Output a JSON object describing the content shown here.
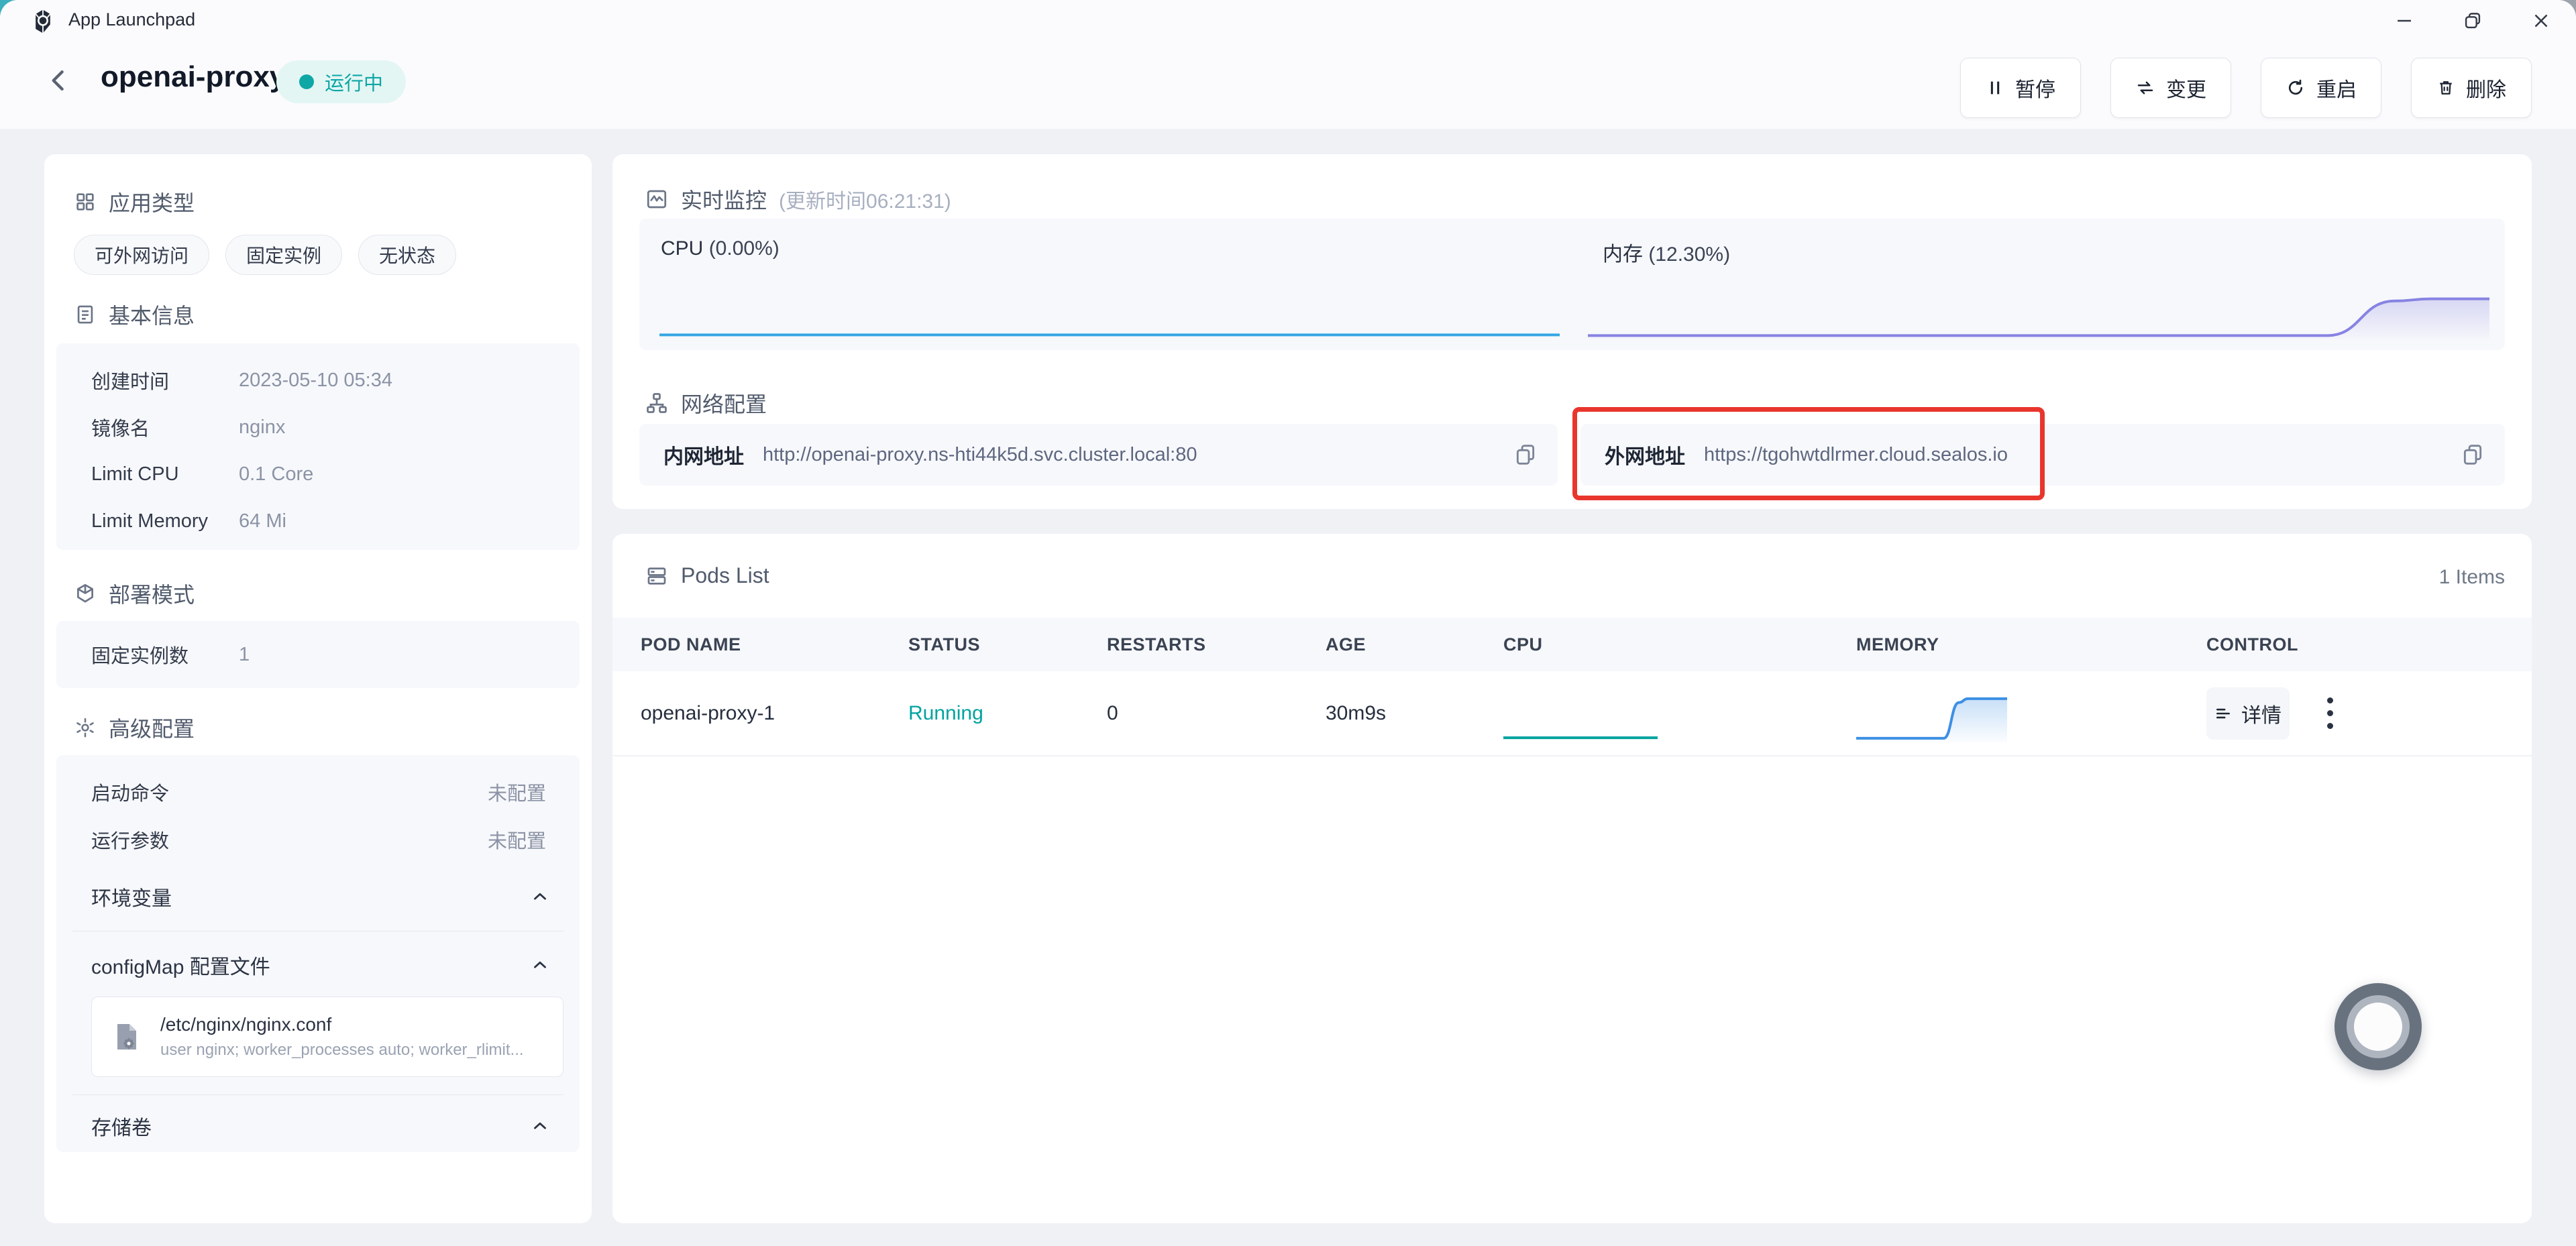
{
  "window": {
    "title": "App Launchpad"
  },
  "header": {
    "app_name": "openai-proxy",
    "status": "运行中",
    "actions": {
      "pause": "暂停",
      "change": "变更",
      "restart": "重启",
      "delete": "删除"
    }
  },
  "sidebar": {
    "app_type": {
      "title": "应用类型",
      "tags": [
        "可外网访问",
        "固定实例",
        "无状态"
      ]
    },
    "basic_info": {
      "title": "基本信息",
      "rows": [
        {
          "label": "创建时间",
          "value": "2023-05-10 05:34"
        },
        {
          "label": "镜像名",
          "value": "nginx"
        },
        {
          "label": "Limit CPU",
          "value": "0.1 Core"
        },
        {
          "label": "Limit Memory",
          "value": "64 Mi"
        }
      ]
    },
    "deploy_mode": {
      "title": "部署模式",
      "rows": [
        {
          "label": "固定实例数",
          "value": "1"
        }
      ]
    },
    "advanced": {
      "title": "高级配置",
      "rows": [
        {
          "label": "启动命令",
          "value": "未配置"
        },
        {
          "label": "运行参数",
          "value": "未配置"
        }
      ],
      "env_title": "环境变量",
      "configmap_title": "configMap 配置文件",
      "file": {
        "path": "/etc/nginx/nginx.conf",
        "preview": "user nginx; worker_processes auto; worker_rlimit..."
      },
      "storage_title": "存储卷"
    }
  },
  "monitoring": {
    "title": "实时监控",
    "subtitle": "(更新时间06:21:31)",
    "chart_data": [
      {
        "type": "area",
        "name": "CPU",
        "label": "CPU",
        "value_text": "(0.00%)",
        "current_percent": 0.0,
        "color": "#35A6E4",
        "series": [
          [
            0,
            0.05
          ],
          [
            1,
            0.05
          ]
        ]
      },
      {
        "type": "area",
        "name": "内存",
        "label": "内存",
        "value_text": "(12.30%)",
        "current_percent": 12.3,
        "color": "#8783E3",
        "series": [
          [
            0,
            0.04
          ],
          [
            0.82,
            0.04
          ],
          [
            0.895,
            0.6
          ],
          [
            0.935,
            0.635
          ],
          [
            1,
            0.635
          ]
        ]
      }
    ]
  },
  "network": {
    "title": "网络配置",
    "internal": {
      "label": "内网地址",
      "url": "http://openai-proxy.ns-hti44k5d.svc.cluster.local:80"
    },
    "external": {
      "label": "外网地址",
      "url": "https://tgohwtdlrmer.cloud.sealos.io"
    }
  },
  "pods": {
    "title": "Pods List",
    "count": "1 Items",
    "columns": [
      "POD NAME",
      "STATUS",
      "RESTARTS",
      "AGE",
      "CPU",
      "MEMORY",
      "CONTROL"
    ],
    "rows": [
      {
        "name": "openai-proxy-1",
        "status": "Running",
        "restarts": "0",
        "age": "30m9s",
        "detail_label": "详情",
        "cpu_series": [
          [
            0,
            0.06
          ],
          [
            1,
            0.06
          ]
        ],
        "memory_series": [
          [
            0,
            0.05
          ],
          [
            0.58,
            0.05
          ],
          [
            0.68,
            0.7
          ],
          [
            0.74,
            0.77
          ],
          [
            1,
            0.77
          ]
        ],
        "cpu_color": "#00A3A0",
        "memory_color": "#3D8FE4"
      }
    ],
    "status_color": "#00A3A0"
  },
  "colors": {
    "accent_teal": "#0EA7A5",
    "annotation_red": "#E8362D",
    "cpu_line": "#35A6E4",
    "memory_line": "#8783E3"
  }
}
